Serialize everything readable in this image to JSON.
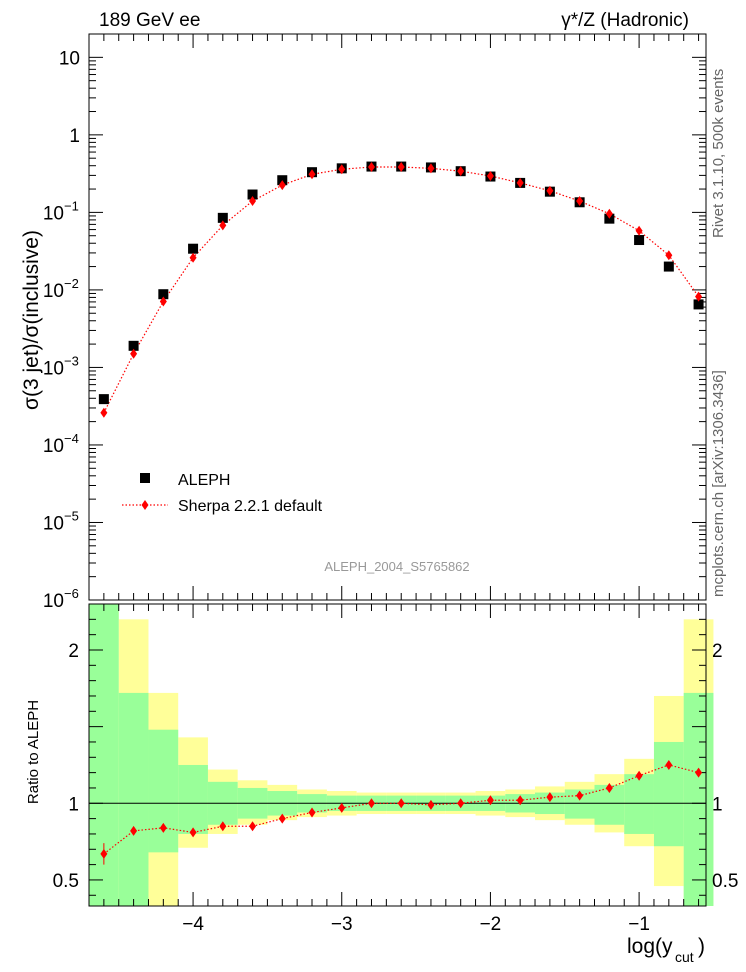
{
  "header": {
    "left": "189 GeV ee",
    "right": "γ*/Z (Hadronic)"
  },
  "side_labels": {
    "rivet": "Rivet 3.1.10,  500k events",
    "mcplots": "mcplots.cern.ch [arXiv:1306.3436]"
  },
  "watermark": "ALEPH_2004_S5765862",
  "ratio_ylabel": "Ratio to ALEPH",
  "colors": {
    "data": "#000000",
    "mc": "#ff0000",
    "band_inner": "#99ff99",
    "band_outer": "#ffff99"
  },
  "chart_data": [
    {
      "type": "scatter",
      "panel": "main",
      "y_scale": "log",
      "ylim": [
        1e-06,
        20
      ],
      "xlim": [
        -4.7,
        -0.55
      ],
      "ylabel": "σ(3 jet)/σ(inclusive)",
      "y_ticks": [
        {
          "value": 1e-06,
          "base": "10",
          "exp": "−6"
        },
        {
          "value": 1e-05,
          "base": "10",
          "exp": "−5"
        },
        {
          "value": 0.0001,
          "base": "10",
          "exp": "−4"
        },
        {
          "value": 0.001,
          "base": "10",
          "exp": "−3"
        },
        {
          "value": 0.01,
          "base": "10",
          "exp": "−2"
        },
        {
          "value": 0.1,
          "base": "10",
          "exp": "−1"
        },
        {
          "value": 1,
          "base": "1",
          "exp": ""
        },
        {
          "value": 10,
          "base": "10",
          "exp": ""
        }
      ],
      "legend": {
        "position": "lower-left",
        "entries": [
          "ALEPH",
          "Sherpa 2.2.1 default"
        ]
      },
      "series": [
        {
          "name": "ALEPH",
          "marker": "square",
          "x": [
            -4.6,
            -4.4,
            -4.2,
            -4.0,
            -3.8,
            -3.6,
            -3.4,
            -3.2,
            -3.0,
            -2.8,
            -2.6,
            -2.4,
            -2.2,
            -2.0,
            -1.8,
            -1.6,
            -1.4,
            -1.2,
            -1.0,
            -0.8,
            -0.6
          ],
          "y": [
            0.00039,
            0.0019,
            0.0088,
            0.034,
            0.085,
            0.17,
            0.26,
            0.33,
            0.37,
            0.39,
            0.39,
            0.38,
            0.34,
            0.29,
            0.24,
            0.185,
            0.135,
            0.083,
            0.044,
            0.02,
            0.0065
          ]
        },
        {
          "name": "Sherpa 2.2.1 default",
          "marker": "diamond",
          "x": [
            -4.6,
            -4.4,
            -4.2,
            -4.0,
            -3.8,
            -3.6,
            -3.4,
            -3.2,
            -3.0,
            -2.8,
            -2.6,
            -2.4,
            -2.2,
            -2.0,
            -1.8,
            -1.6,
            -1.4,
            -1.2,
            -1.0,
            -0.8,
            -0.6
          ],
          "y": [
            0.00026,
            0.0015,
            0.0071,
            0.026,
            0.068,
            0.14,
            0.225,
            0.31,
            0.36,
            0.385,
            0.385,
            0.37,
            0.34,
            0.295,
            0.24,
            0.19,
            0.14,
            0.096,
            0.058,
            0.028,
            0.0082
          ]
        }
      ]
    },
    {
      "type": "scatter",
      "panel": "ratio",
      "xlabel": "log(y",
      "xlabel_sub": "cut",
      "xlabel_close": ")",
      "ylabel": "Ratio to ALEPH",
      "xlim": [
        -4.7,
        -0.55
      ],
      "ylim": [
        0.33,
        2.3
      ],
      "x_ticks": [
        {
          "value": -4,
          "label": "−4"
        },
        {
          "value": -3,
          "label": "−3"
        },
        {
          "value": -2,
          "label": "−2"
        },
        {
          "value": -1,
          "label": "−1"
        }
      ],
      "y_ticks": [
        {
          "value": 0.5,
          "label": "0.5"
        },
        {
          "value": 1,
          "label": "1"
        },
        {
          "value": 2,
          "label": "2"
        }
      ],
      "bin_edges": [
        -4.7,
        -4.5,
        -4.3,
        -4.1,
        -3.9,
        -3.7,
        -3.5,
        -3.3,
        -3.1,
        -2.9,
        -2.7,
        -2.5,
        -2.3,
        -2.1,
        -1.9,
        -1.7,
        -1.5,
        -1.3,
        -1.1,
        -0.9,
        -0.7,
        -0.5
      ],
      "band_outer": {
        "upper": [
          2.3,
          2.2,
          1.72,
          1.43,
          1.22,
          1.15,
          1.12,
          1.09,
          1.08,
          1.07,
          1.07,
          1.07,
          1.07,
          1.08,
          1.09,
          1.11,
          1.14,
          1.19,
          1.29,
          1.7,
          2.2
        ],
        "lower": [
          0.33,
          0.33,
          0.33,
          0.71,
          0.8,
          0.86,
          0.89,
          0.91,
          0.92,
          0.93,
          0.93,
          0.93,
          0.93,
          0.92,
          0.91,
          0.89,
          0.86,
          0.81,
          0.72,
          0.46,
          0.33
        ]
      },
      "band_inner": {
        "upper": [
          2.3,
          1.72,
          1.48,
          1.25,
          1.14,
          1.1,
          1.08,
          1.06,
          1.05,
          1.05,
          1.05,
          1.05,
          1.05,
          1.05,
          1.06,
          1.07,
          1.09,
          1.12,
          1.19,
          1.4,
          1.72
        ],
        "lower": [
          0.33,
          0.33,
          0.68,
          0.8,
          0.86,
          0.9,
          0.92,
          0.94,
          0.95,
          0.95,
          0.95,
          0.95,
          0.95,
          0.95,
          0.94,
          0.93,
          0.9,
          0.86,
          0.8,
          0.72,
          0.33
        ]
      },
      "series": [
        {
          "name": "Sherpa 2.2.1 default",
          "marker": "diamond",
          "x": [
            -4.6,
            -4.4,
            -4.2,
            -4.0,
            -3.8,
            -3.6,
            -3.4,
            -3.2,
            -3.0,
            -2.8,
            -2.6,
            -2.4,
            -2.2,
            -2.0,
            -1.8,
            -1.6,
            -1.4,
            -1.2,
            -1.0,
            -0.8,
            -0.6
          ],
          "y": [
            0.67,
            0.82,
            0.84,
            0.81,
            0.85,
            0.85,
            0.9,
            0.94,
            0.97,
            1.0,
            1.0,
            0.99,
            1.0,
            1.02,
            1.02,
            1.04,
            1.05,
            1.1,
            1.18,
            1.25,
            1.2
          ],
          "yerr": [
            0.07,
            0.02,
            0.01,
            0.01,
            0.01,
            0.01,
            0.01,
            0.005,
            0.005,
            0.005,
            0.005,
            0.005,
            0.005,
            0.005,
            0.005,
            0.005,
            0.01,
            0.01,
            0.01,
            0.02,
            0.02
          ]
        }
      ]
    }
  ]
}
